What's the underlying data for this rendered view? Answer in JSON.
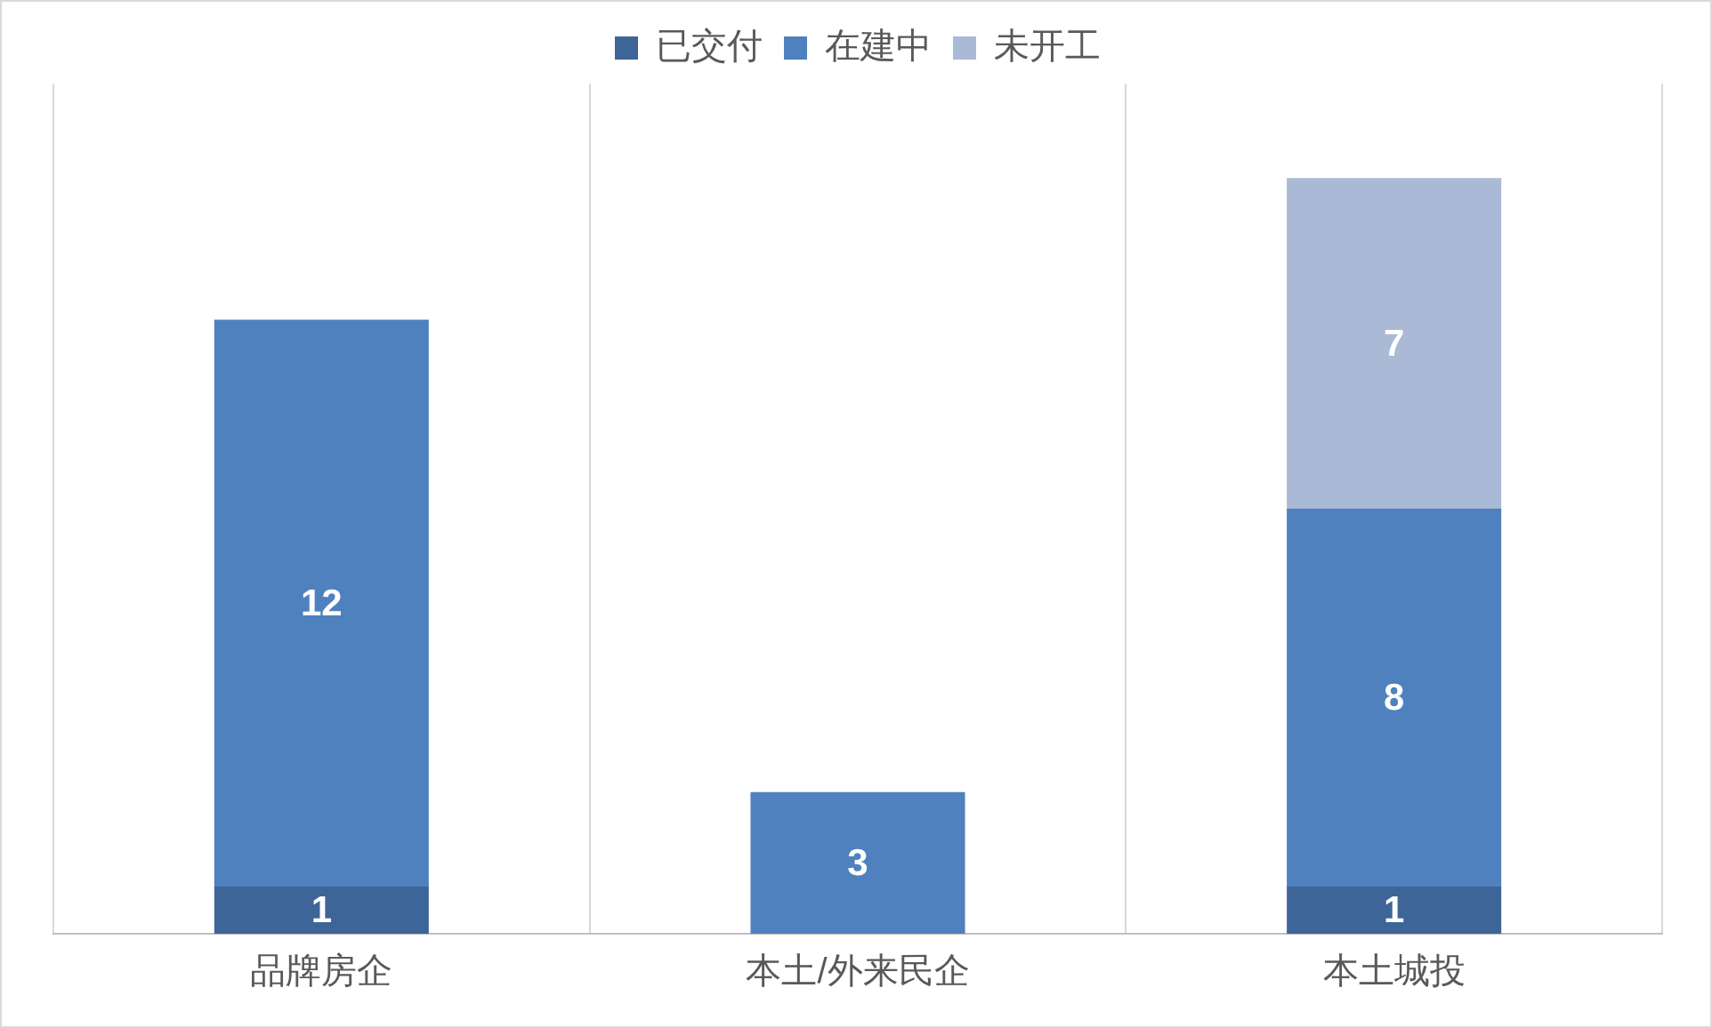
{
  "chart_data": {
    "type": "bar",
    "stacked": true,
    "categories": [
      "品牌房企",
      "本土/外来民企",
      "本土城投"
    ],
    "series": [
      {
        "name": "已交付",
        "color": "#3e6597",
        "values": [
          1,
          null,
          1
        ]
      },
      {
        "name": "在建中",
        "color": "#4e81bd",
        "values": [
          12,
          3,
          8
        ]
      },
      {
        "name": "未开工",
        "color": "#a9b9d6",
        "values": [
          null,
          null,
          7
        ]
      }
    ],
    "ylim": [
      0,
      18
    ],
    "tick_labels": "x",
    "grid": "x",
    "legend": "top",
    "data_labels": true
  }
}
